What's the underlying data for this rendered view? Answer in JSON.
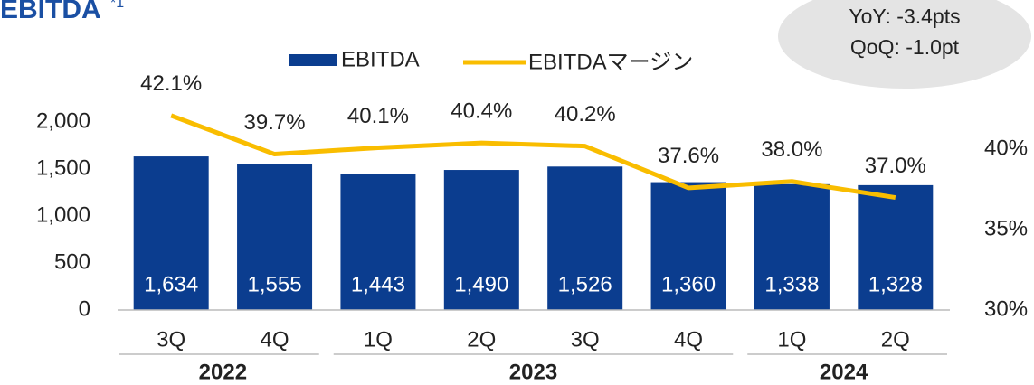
{
  "chart_data": {
    "type": "bar",
    "title": "EBITDA",
    "title_note": "*1",
    "annotation": [
      "YoY:  -3.4pts",
      "QoQ: -1.0pt"
    ],
    "categories": [
      "3Q",
      "4Q",
      "1Q",
      "2Q",
      "3Q",
      "4Q",
      "1Q",
      "2Q"
    ],
    "groups": [
      {
        "label": "2022",
        "span": 2
      },
      {
        "label": "2023",
        "span": 4
      },
      {
        "label": "2024",
        "span": 2
      }
    ],
    "series": [
      {
        "name": "EBITDA",
        "type": "bar",
        "color": "#0b3d8f",
        "values": [
          1634,
          1555,
          1443,
          1490,
          1526,
          1360,
          1338,
          1328
        ],
        "value_labels": [
          "1,634",
          "1,555",
          "1,443",
          "1,490",
          "1,526",
          "1,360",
          "1,338",
          "1,328"
        ]
      },
      {
        "name": "EBITDAマージン",
        "type": "line",
        "axis": "y2",
        "color": "#f9bd00",
        "values": [
          42.1,
          39.7,
          40.1,
          40.4,
          40.2,
          37.6,
          38.0,
          37.0
        ],
        "value_labels": [
          "42.1%",
          "39.7%",
          "40.1%",
          "40.4%",
          "40.2%",
          "37.6%",
          "38.0%",
          "37.0%"
        ]
      }
    ],
    "ylim": [
      0,
      2000
    ],
    "yticks": [
      0,
      500,
      {
        "value": 1000,
        "label": "1,000"
      },
      {
        "value": 1500,
        "label": "1,500"
      },
      {
        "value": 2000,
        "label": "2,000"
      }
    ],
    "y2lim": [
      30,
      41.7
    ],
    "y2ticks": [
      {
        "value": 30,
        "label": "30%"
      },
      {
        "value": 35,
        "label": "35%"
      },
      {
        "value": 40,
        "label": "40%"
      }
    ],
    "legend": "top"
  }
}
